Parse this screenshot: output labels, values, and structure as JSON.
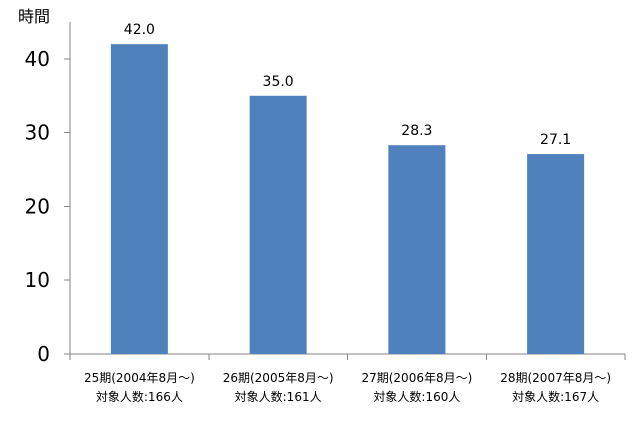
{
  "chart_data": {
    "type": "bar",
    "title": "",
    "xlabel": "",
    "ylabel": "時間",
    "ylim": [
      0,
      45
    ],
    "yticks": [
      0,
      10,
      20,
      30,
      40
    ],
    "categories": [
      {
        "line1": "25期(2004年8月～)",
        "line2": "対象人数:166人"
      },
      {
        "line1": "26期(2005年8月～)",
        "line2": "対象人数:161人"
      },
      {
        "line1": "27期(2006年8月～)",
        "line2": "対象人数:160人"
      },
      {
        "line1": "28期(2007年8月～)",
        "line2": "対象人数:167人"
      }
    ],
    "values": [
      42.0,
      35.0,
      28.3,
      27.1
    ],
    "data_labels": [
      "42.0",
      "35.0",
      "28.3",
      "27.1"
    ],
    "bar_color": "#4F81BD",
    "grid": false,
    "legend": "none"
  }
}
